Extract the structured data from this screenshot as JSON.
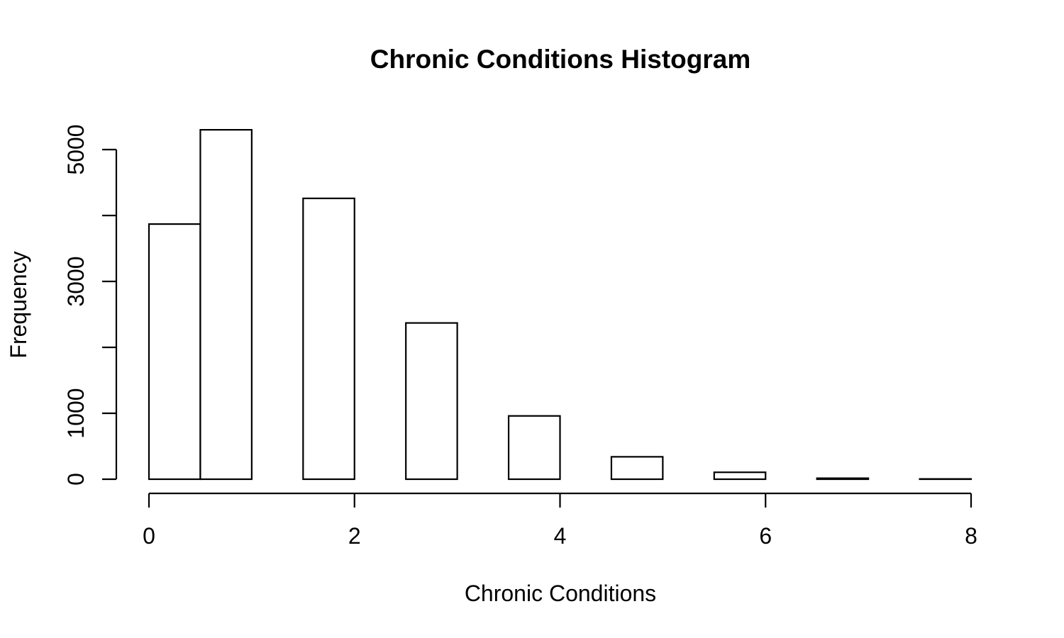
{
  "chart_data": {
    "type": "bar",
    "title": "Chronic Conditions Histogram",
    "xlabel": "Chronic Conditions",
    "ylabel": "Frequency",
    "bins": [
      {
        "x0": 0.0,
        "x1": 0.5,
        "count": 3870
      },
      {
        "x0": 0.5,
        "x1": 1.0,
        "count": 5300
      },
      {
        "x0": 1.0,
        "x1": 1.5,
        "count": 0
      },
      {
        "x0": 1.5,
        "x1": 2.0,
        "count": 4260
      },
      {
        "x0": 2.0,
        "x1": 2.5,
        "count": 0
      },
      {
        "x0": 2.5,
        "x1": 3.0,
        "count": 2370
      },
      {
        "x0": 3.0,
        "x1": 3.5,
        "count": 0
      },
      {
        "x0": 3.5,
        "x1": 4.0,
        "count": 960
      },
      {
        "x0": 4.0,
        "x1": 4.5,
        "count": 0
      },
      {
        "x0": 4.5,
        "x1": 5.0,
        "count": 340
      },
      {
        "x0": 5.0,
        "x1": 5.5,
        "count": 0
      },
      {
        "x0": 5.5,
        "x1": 6.0,
        "count": 105
      },
      {
        "x0": 6.0,
        "x1": 6.5,
        "count": 0
      },
      {
        "x0": 6.5,
        "x1": 7.0,
        "count": 15
      },
      {
        "x0": 7.0,
        "x1": 7.5,
        "count": 0
      },
      {
        "x0": 7.5,
        "x1": 8.0,
        "count": 4
      }
    ],
    "xlim": [
      0,
      8
    ],
    "ylim": [
      0,
      5300
    ],
    "x_ticks": [
      0,
      2,
      4,
      6,
      8
    ],
    "x_tick_labels": [
      "0",
      "2",
      "4",
      "6",
      "8"
    ],
    "y_ticks": [
      0,
      1000,
      2000,
      3000,
      4000,
      5000
    ],
    "y_tick_labels": [
      "0",
      "1000",
      "",
      "3000",
      "",
      "5000"
    ],
    "grid": false,
    "legend": "none"
  }
}
